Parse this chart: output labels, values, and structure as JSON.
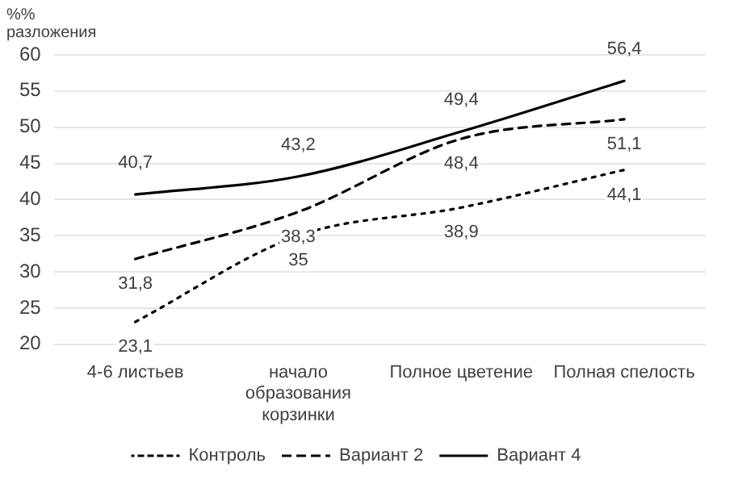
{
  "chart_data": {
    "type": "line",
    "ylabel": "%% разложения",
    "categories": [
      "4-6 листьев",
      "начало образования корзинки",
      "Полное цветение",
      "Полная спелость"
    ],
    "series": [
      {
        "name": "Контроль",
        "color": "#000000",
        "line_style": "dotted",
        "values": [
          23.1,
          35,
          38.9,
          44.1
        ],
        "value_labels": [
          "23,1",
          "35",
          "38,9",
          "44,1"
        ]
      },
      {
        "name": "Вариант 2",
        "color": "#000000",
        "line_style": "dashed",
        "values": [
          31.8,
          38.3,
          48.4,
          51.1
        ],
        "value_labels": [
          "31,8",
          "38,3",
          "48,4",
          "51,1"
        ]
      },
      {
        "name": "Вариант 4",
        "color": "#000000",
        "line_style": "solid",
        "values": [
          40.7,
          43.2,
          49.4,
          56.4
        ],
        "value_labels": [
          "40,7",
          "43,2",
          "49,4",
          "56,4"
        ]
      }
    ],
    "ylim": [
      20,
      60
    ],
    "yticks": [
      20,
      25,
      30,
      35,
      40,
      45,
      50,
      55,
      60
    ],
    "grid": "y",
    "legend": "bottom",
    "marker": "none"
  }
}
